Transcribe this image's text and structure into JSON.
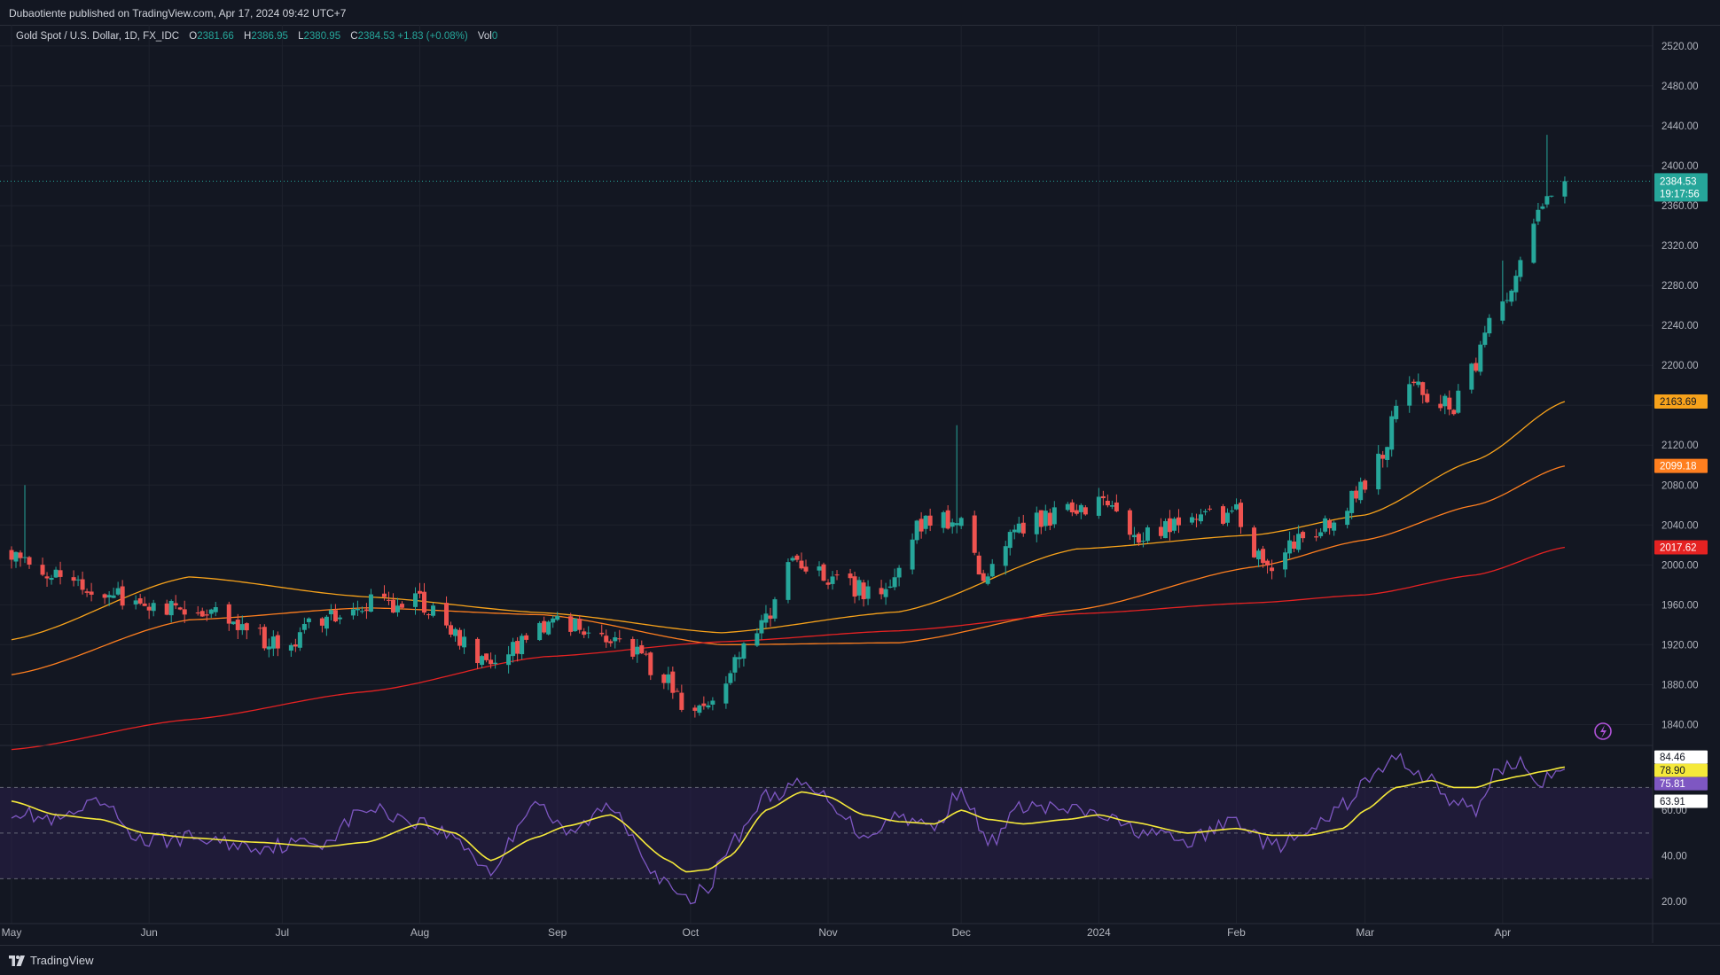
{
  "header": {
    "published": "Dubaotiente published on TradingView.com, Apr 17, 2024 09:42 UTC+7"
  },
  "legend": {
    "symbol": "Gold Spot / U.S. Dollar, 1D, FX_IDC",
    "o_label": "O",
    "o_value": "2381.66",
    "h_label": "H",
    "h_value": "2386.95",
    "l_label": "L",
    "l_value": "2380.95",
    "c_label": "C",
    "c_value": "2384.53",
    "change": "+1.83 (+0.08%)",
    "vol_label": "Vol",
    "vol_value": "0"
  },
  "footer": {
    "brand": "TradingView"
  },
  "price_tags": {
    "last": "2384.53",
    "countdown": "19:17:56",
    "ma_fast": "2163.69",
    "ma_mid": "2099.18",
    "ma_slow": "2017.62"
  },
  "rsi_tags": {
    "upper": "84.46",
    "ma": "78.90",
    "rsi": "75.81",
    "lower": "63.91"
  },
  "colors": {
    "background": "#131722",
    "up": "#26a69a",
    "down": "#ef5350",
    "ma_fast": "#f7a21b",
    "ma_mid": "#ff7f1f",
    "ma_slow": "#e52222",
    "rsi_line": "#7e57c2",
    "rsi_ma": "#f5e93a",
    "rsi_band": "#2a1f4a"
  },
  "icons": {
    "alert": "lightning-icon",
    "logo": "tradingview-logo-icon"
  },
  "chart_data": {
    "type": "candlestick",
    "title": "Gold Spot / U.S. Dollar, 1D, FX_IDC",
    "price_axis": {
      "ticks": [
        "2520.00",
        "2480.00",
        "2440.00",
        "2400.00",
        "2360.00",
        "2320.00",
        "2280.00",
        "2240.00",
        "2200.00",
        "2160.00",
        "2120.00",
        "2080.00",
        "2040.00",
        "2000.00",
        "1960.00",
        "1920.00",
        "1880.00",
        "1840.00"
      ],
      "ylim": [
        1820,
        2535
      ]
    },
    "time_axis": {
      "labels": [
        "May",
        "Jun",
        "Jul",
        "Aug",
        "Sep",
        "Oct",
        "Nov",
        "Dec",
        "2024",
        "Feb",
        "Mar",
        "Apr"
      ],
      "label_days": [
        0,
        31,
        61,
        92,
        123,
        153,
        184,
        214,
        245,
        276,
        305,
        336
      ]
    },
    "price_series": {
      "name": "Gold Spot / U.S. Dollar",
      "x_days": [
        0,
        15,
        31,
        45,
        61,
        75,
        92,
        108,
        123,
        138,
        148,
        153,
        158,
        168,
        176,
        184,
        196,
        205,
        214,
        219,
        225,
        235,
        245,
        255,
        266,
        276,
        282,
        288,
        295,
        305,
        315,
        325,
        336,
        342,
        345,
        350
      ],
      "close": [
        2016,
        1975,
        1962,
        1955,
        1920,
        1958,
        1965,
        1900,
        1940,
        1925,
        1880,
        1838,
        1870,
        1930,
        2000,
        1985,
        1970,
        2040,
        2045,
        1985,
        2035,
        2050,
        2065,
        2030,
        2045,
        2050,
        1998,
        2020,
        2035,
        2080,
        2178,
        2162,
        2260,
        2340,
        2360,
        2384
      ]
    },
    "moving_averages": [
      {
        "color": "#f7a21b",
        "x_days": [
          0,
          40,
          80,
          120,
          160,
          200,
          240,
          280,
          305,
          330,
          350
        ],
        "values": [
          1925,
          1988,
          1968,
          1952,
          1932,
          1953,
          2016,
          2030,
          2050,
          2105,
          2163.69
        ]
      },
      {
        "color": "#ff7f1f",
        "x_days": [
          0,
          40,
          80,
          120,
          160,
          200,
          240,
          280,
          305,
          330,
          350
        ],
        "values": [
          1890,
          1945,
          1957,
          1950,
          1920,
          1922,
          1955,
          1998,
          2025,
          2060,
          2099.18
        ]
      },
      {
        "color": "#e52222",
        "x_days": [
          0,
          40,
          80,
          120,
          160,
          200,
          240,
          280,
          305,
          330,
          350
        ],
        "values": [
          1815,
          1845,
          1873,
          1908,
          1923,
          1934,
          1951,
          1962,
          1970,
          1990,
          2017.62
        ]
      }
    ],
    "rsi": {
      "ticks": [
        "60.00",
        "40.00",
        "20.00"
      ],
      "bands": [
        70,
        50,
        30
      ],
      "ylim": [
        15,
        88
      ],
      "x_days": [
        0,
        10,
        20,
        30,
        40,
        55,
        70,
        80,
        92,
        100,
        108,
        118,
        125,
        135,
        148,
        152,
        157,
        162,
        170,
        178,
        184,
        192,
        200,
        208,
        214,
        220,
        228,
        238,
        245,
        252,
        265,
        276,
        284,
        292,
        300,
        305,
        312,
        320,
        325,
        330,
        335,
        340,
        345,
        350
      ],
      "rsi": [
        60,
        55,
        63,
        46,
        48,
        44,
        46,
        61,
        55,
        48,
        33,
        65,
        49,
        62,
        26,
        20,
        27,
        45,
        66,
        71,
        65,
        49,
        58,
        52,
        70,
        45,
        62,
        60,
        58,
        52,
        46,
        56,
        44,
        49,
        62,
        72,
        83,
        73,
        63,
        60,
        79,
        80,
        73,
        75.81
      ],
      "rsi_ma": [
        64,
        58,
        56,
        50,
        48,
        46,
        44,
        46,
        54,
        50,
        38,
        48,
        53,
        58,
        38,
        33,
        34,
        40,
        60,
        68,
        66,
        58,
        55,
        54,
        60,
        56,
        54,
        56,
        58,
        55,
        50,
        52,
        49,
        49,
        52,
        60,
        70,
        73,
        70,
        70,
        73,
        75,
        77,
        78.9
      ]
    }
  }
}
